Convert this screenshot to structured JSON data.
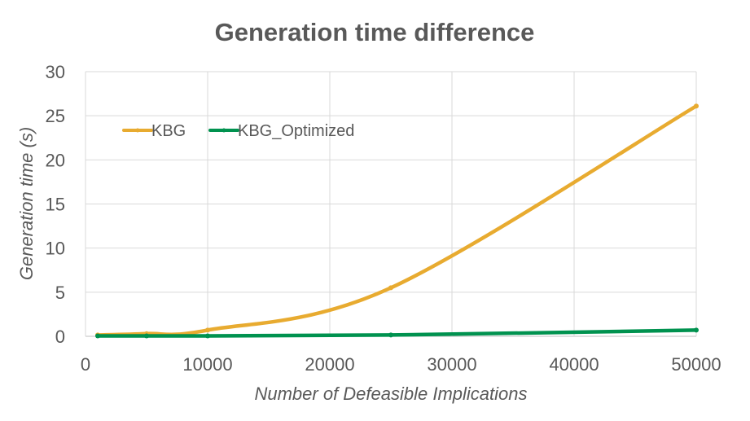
{
  "chart_data": {
    "type": "line",
    "title": "Generation time difference",
    "xlabel": "Number of Defeasible Implications",
    "ylabel": "Generation time (s)",
    "xlim": [
      0,
      50000
    ],
    "ylim": [
      0,
      30
    ],
    "x_ticks": [
      "0",
      "10000",
      "20000",
      "30000",
      "40000",
      "50000"
    ],
    "y_ticks": [
      "0",
      "5",
      "10",
      "15",
      "20",
      "25",
      "30"
    ],
    "grid": true,
    "legend_position": "top-left",
    "series": [
      {
        "name": "KBG",
        "color": "#E8AB30",
        "points": [
          [
            1000,
            0.15
          ],
          [
            5000,
            0.3
          ],
          [
            10000,
            0.7
          ],
          [
            25000,
            5.5
          ],
          [
            50000,
            26.1
          ]
        ]
      },
      {
        "name": "KBG_Optimized",
        "color": "#00924F",
        "points": [
          [
            1000,
            0.05
          ],
          [
            5000,
            0.05
          ],
          [
            10000,
            0.05
          ],
          [
            25000,
            0.15
          ],
          [
            50000,
            0.7
          ]
        ]
      }
    ]
  }
}
